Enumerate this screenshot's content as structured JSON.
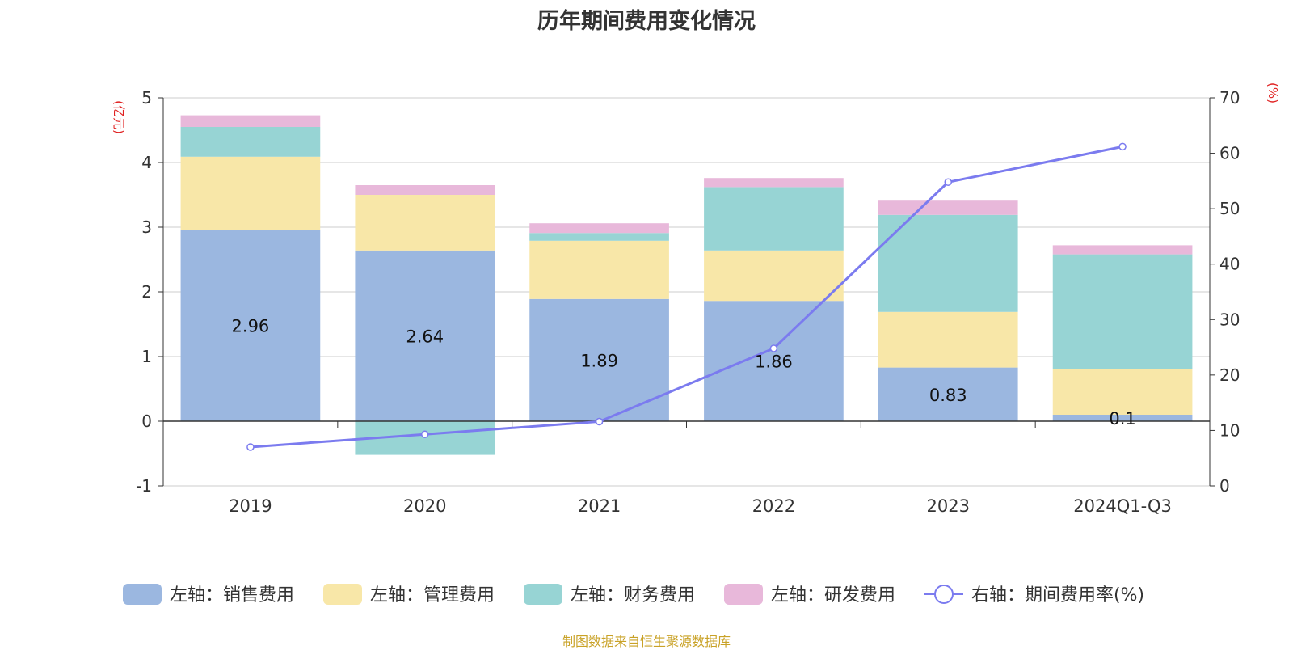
{
  "chart_data": {
    "type": "bar",
    "title": "历年期间费用变化情况",
    "categories": [
      "2019",
      "2020",
      "2021",
      "2022",
      "2023",
      "2024Q1-Q3"
    ],
    "y_left": {
      "label": "(亿元)",
      "ylim": [
        -1,
        5
      ],
      "ticks": [
        -1,
        0,
        1,
        2,
        3,
        4,
        5
      ]
    },
    "y_right": {
      "label": "(%)",
      "ylim": [
        0,
        70
      ],
      "ticks": [
        0,
        10,
        20,
        30,
        40,
        50,
        60,
        70
      ]
    },
    "stacked": true,
    "series": [
      {
        "name": "左轴：销售费用",
        "axis": "left",
        "type": "bar",
        "color": "#9bb7e0",
        "values": [
          2.96,
          2.64,
          1.89,
          1.86,
          0.83,
          0.1
        ],
        "data_labels": [
          "2.96",
          "2.64",
          "1.89",
          "1.86",
          "0.83",
          "0.1"
        ]
      },
      {
        "name": "左轴：管理费用",
        "axis": "left",
        "type": "bar",
        "color": "#f8e7a8",
        "values": [
          1.13,
          0.86,
          0.9,
          0.78,
          0.86,
          0.7
        ]
      },
      {
        "name": "左轴：财务费用",
        "axis": "left",
        "type": "bar",
        "color": "#97d4d4",
        "values": [
          0.46,
          -0.52,
          0.12,
          0.98,
          1.5,
          1.78
        ]
      },
      {
        "name": "左轴：研发费用",
        "axis": "left",
        "type": "bar",
        "color": "#e8b8da",
        "values": [
          0.18,
          0.15,
          0.15,
          0.14,
          0.22,
          0.14
        ]
      },
      {
        "name": "右轴：期间费用率(%)",
        "axis": "right",
        "type": "line",
        "color": "#7b7bef",
        "values": [
          7.0,
          9.3,
          11.6,
          24.8,
          54.8,
          61.2
        ]
      }
    ],
    "grid": true,
    "legend_position": "bottom"
  },
  "footer": {
    "source": "制图数据来自恒生聚源数据库"
  }
}
